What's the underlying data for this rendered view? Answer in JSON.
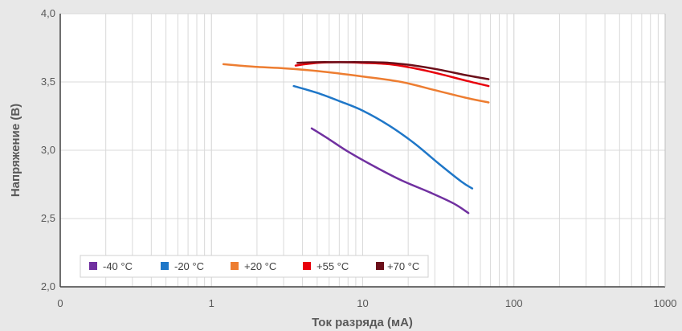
{
  "chart_data": {
    "type": "line",
    "xlabel": "Ток разряда (мА)",
    "ylabel": "Напряжение (В)",
    "x_scale": "log",
    "xlim": [
      0.1,
      1000
    ],
    "ylim": [
      2.0,
      4.0
    ],
    "x_tick_labels": [
      "0",
      "1",
      "10",
      "100",
      "1000"
    ],
    "y_tick_labels": [
      "2,0",
      "2,5",
      "3,0",
      "3,5",
      "4,0"
    ],
    "grid": true,
    "legend_position": "bottom-left",
    "series": [
      {
        "name": "-40 °C",
        "color": "#7030a0",
        "points": [
          [
            4.6,
            3.16
          ],
          [
            6,
            3.08
          ],
          [
            8,
            2.99
          ],
          [
            12,
            2.88
          ],
          [
            18,
            2.78
          ],
          [
            28,
            2.69
          ],
          [
            40,
            2.61
          ],
          [
            50,
            2.54
          ]
        ]
      },
      {
        "name": "-20 °C",
        "color": "#1f77c8",
        "points": [
          [
            3.5,
            3.47
          ],
          [
            5,
            3.42
          ],
          [
            7,
            3.36
          ],
          [
            10,
            3.29
          ],
          [
            15,
            3.18
          ],
          [
            22,
            3.05
          ],
          [
            32,
            2.9
          ],
          [
            45,
            2.77
          ],
          [
            53,
            2.72
          ]
        ]
      },
      {
        "name": "+20 °C",
        "color": "#ed7d31",
        "points": [
          [
            1.2,
            3.63
          ],
          [
            2,
            3.61
          ],
          [
            3,
            3.6
          ],
          [
            5,
            3.58
          ],
          [
            10,
            3.54
          ],
          [
            18,
            3.5
          ],
          [
            30,
            3.44
          ],
          [
            50,
            3.38
          ],
          [
            68,
            3.35
          ]
        ]
      },
      {
        "name": "+55 °C",
        "color": "#e8000b",
        "points": [
          [
            3.6,
            3.62
          ],
          [
            5,
            3.64
          ],
          [
            7,
            3.645
          ],
          [
            10,
            3.64
          ],
          [
            15,
            3.63
          ],
          [
            22,
            3.6
          ],
          [
            32,
            3.56
          ],
          [
            48,
            3.51
          ],
          [
            68,
            3.47
          ]
        ]
      },
      {
        "name": "+70 °C",
        "color": "#6b0f1a",
        "points": [
          [
            3.7,
            3.64
          ],
          [
            5,
            3.645
          ],
          [
            7,
            3.645
          ],
          [
            10,
            3.645
          ],
          [
            15,
            3.64
          ],
          [
            22,
            3.62
          ],
          [
            32,
            3.59
          ],
          [
            48,
            3.55
          ],
          [
            68,
            3.52
          ]
        ]
      }
    ]
  }
}
